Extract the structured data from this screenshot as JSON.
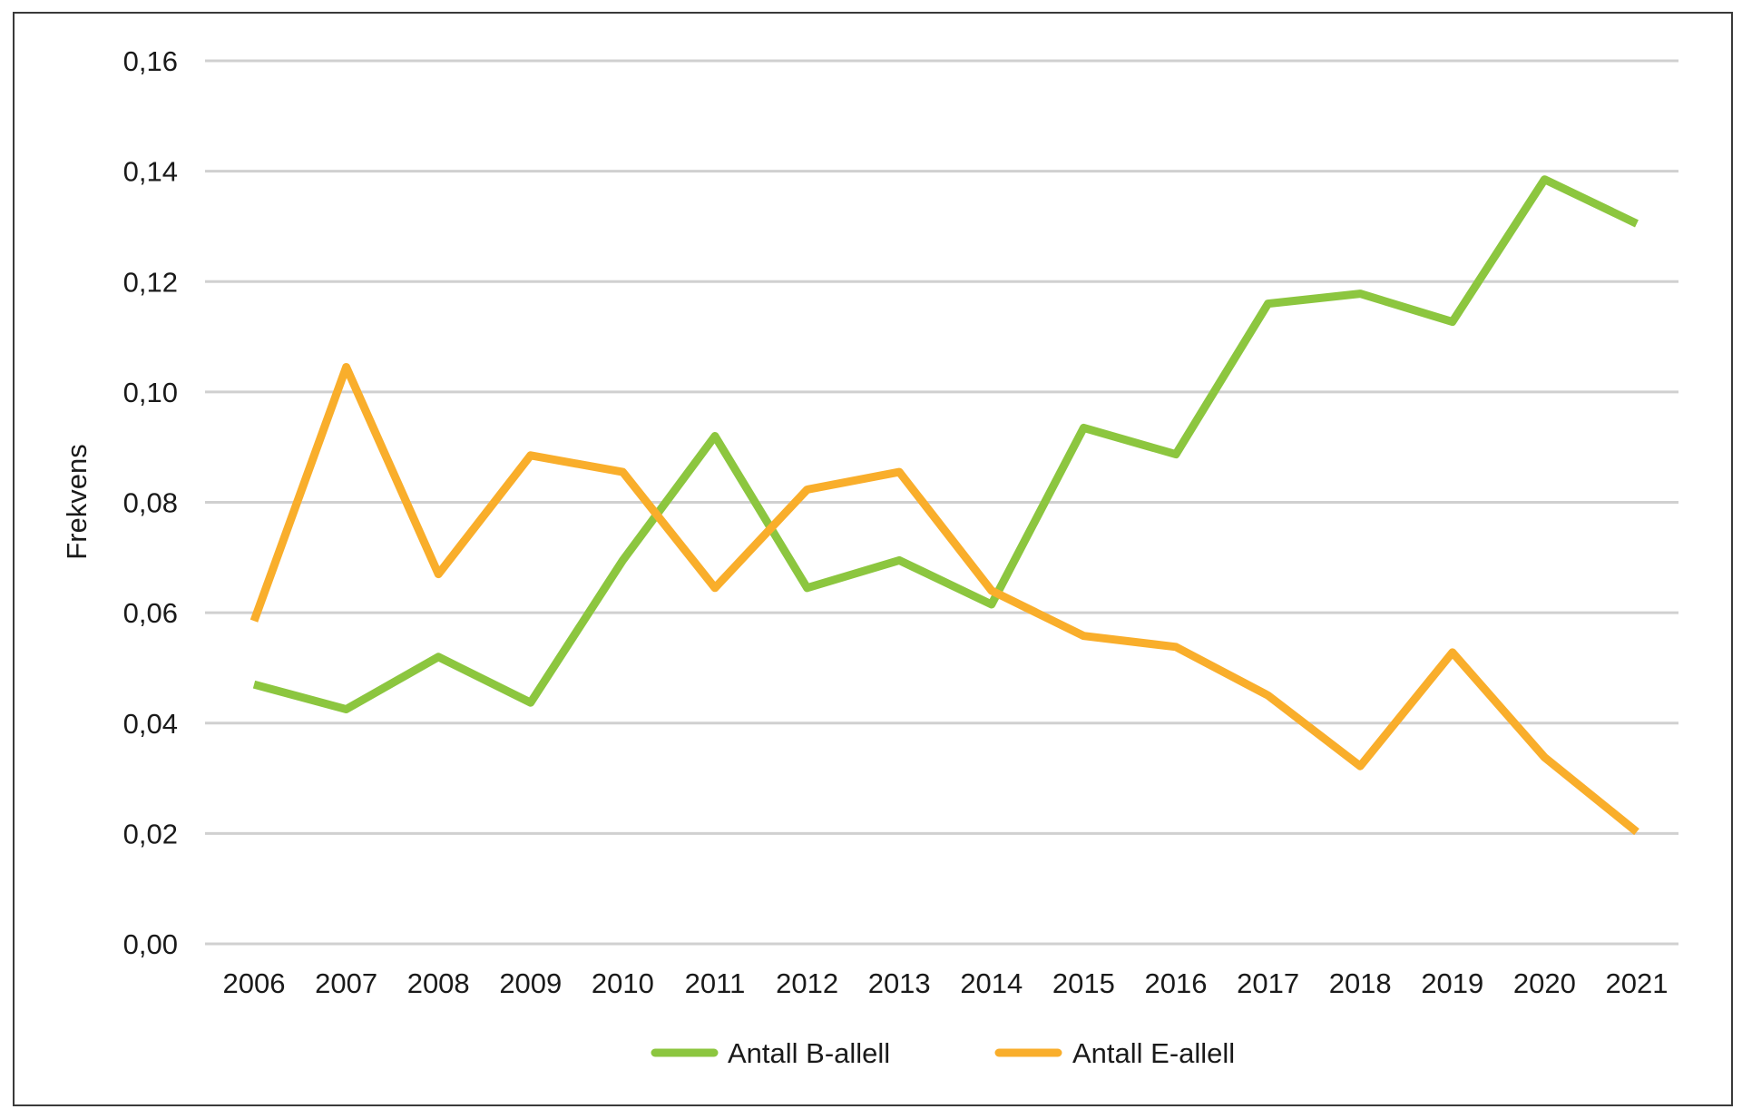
{
  "chart_data": {
    "type": "line",
    "title": "",
    "xlabel": "",
    "ylabel": "Frekvens",
    "categories": [
      "2006",
      "2007",
      "2008",
      "2009",
      "2010",
      "2011",
      "2012",
      "2013",
      "2014",
      "2015",
      "2016",
      "2017",
      "2018",
      "2019",
      "2020",
      "2021"
    ],
    "y_ticks": [
      "0,00",
      "0,02",
      "0,04",
      "0,06",
      "0,08",
      "0,10",
      "0,12",
      "0,14",
      "0,16"
    ],
    "ylim": [
      0,
      0.16
    ],
    "grid": "horizontal",
    "legend_position": "bottom",
    "series": [
      {
        "name": "Antall B-allell",
        "color": "#8CC63F",
        "values": [
          0.047,
          0.0425,
          0.052,
          0.0437,
          0.0695,
          0.092,
          0.0645,
          0.0695,
          0.0615,
          0.0935,
          0.0887,
          0.116,
          0.1178,
          0.1127,
          0.1385,
          0.1305
        ]
      },
      {
        "name": "Antall E-allell",
        "color": "#F9AE2B",
        "values": [
          0.0585,
          0.1045,
          0.067,
          0.0885,
          0.0855,
          0.0645,
          0.0823,
          0.0855,
          0.064,
          0.0558,
          0.0538,
          0.045,
          0.0322,
          0.0528,
          0.0338,
          0.0203
        ]
      }
    ]
  }
}
